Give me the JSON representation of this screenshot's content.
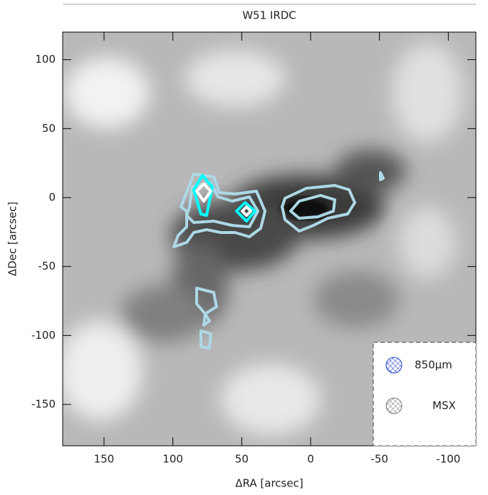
{
  "chart_data": {
    "type": "image",
    "title": "W51 IRDC",
    "x_label": "ΔRA [arcsec]",
    "y_label": "ΔDec [arcsec]",
    "xlim": [
      180,
      -120
    ],
    "ylim": [
      -180,
      120
    ],
    "xticks": [
      150,
      100,
      50,
      0,
      -50,
      -100
    ],
    "yticks": [
      100,
      50,
      0,
      -50,
      -100,
      -150
    ],
    "legend": [
      "850μm",
      "MSX"
    ],
    "legend_position": "lower right",
    "contour_colors": [
      "#add8e6",
      "#00ffff",
      "#ffffff"
    ]
  }
}
